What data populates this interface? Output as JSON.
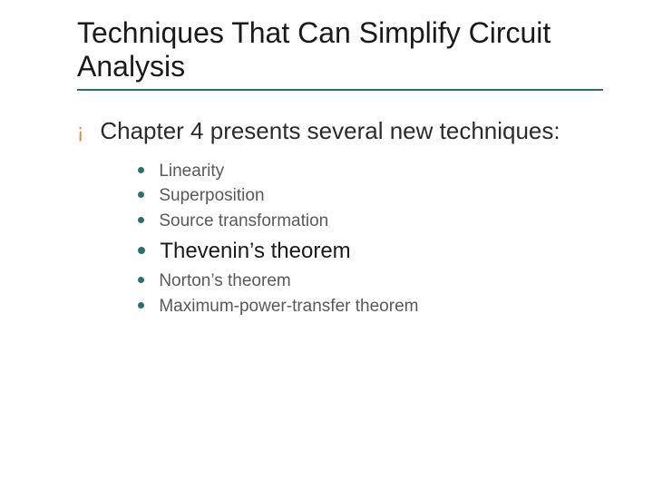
{
  "colors": {
    "title_text": "#1a1a1a",
    "title_underline": "#2f6e6e",
    "body_text": "#2b2b2b",
    "sub_text": "#595959",
    "emph_text": "#1a1a1a",
    "bullet_ring": "#d58a3a",
    "dot_fill": "#2f6e6e"
  },
  "typography": {
    "title_fontsize": 32,
    "level1_fontsize": 26,
    "sub_fontsize": 19,
    "emph_fontsize": 24,
    "bullet_ring_fontsize": 22
  },
  "layout": {
    "dot_size_small": 7,
    "dot_size_emph": 8,
    "dot_top_small": 9,
    "dot_top_emph": 12
  },
  "title": "Techniques That Can Simplify Circuit Analysis",
  "level1_text": "Chapter 4 presents several new techniques:",
  "sub_items": [
    {
      "text": "Linearity",
      "emph": false
    },
    {
      "text": "Superposition",
      "emph": false
    },
    {
      "text": "Source transformation",
      "emph": false
    },
    {
      "text": "Thevenin’s theorem",
      "emph": true
    },
    {
      "text": "Norton’s theorem",
      "emph": false
    },
    {
      "text": "Maximum-power-transfer theorem",
      "emph": false
    }
  ]
}
